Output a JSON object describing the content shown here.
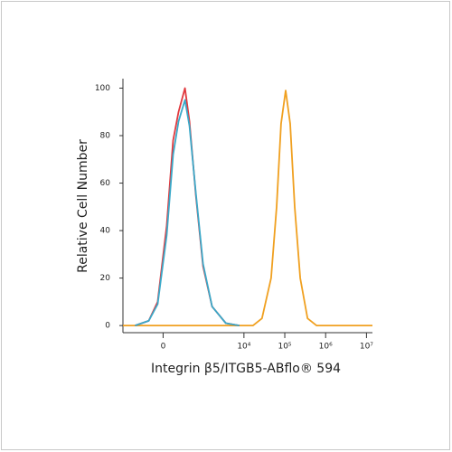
{
  "chart_data": {
    "type": "line",
    "x_label": "Integrin β5/ITGB5-ABflo® 594",
    "y_label": "Relative Cell Number",
    "xscale": "biexponential",
    "xlim": [
      -1000,
      14000000
    ],
    "xticks": [
      0,
      {
        "value": 10000,
        "label": "10⁴"
      },
      {
        "value": 100000,
        "label": "10⁵"
      },
      {
        "value": 1000000,
        "label": "10⁶"
      },
      {
        "value": 10000000,
        "label": "10⁷"
      }
    ],
    "ylim": [
      -3,
      104
    ],
    "yticks": [
      0,
      20,
      40,
      60,
      80,
      100
    ],
    "series": [
      {
        "color": "#f0a020",
        "x": [
          -1000,
          16650,
          27700,
          46200,
          63200,
          81100,
          105000,
          135700,
          175000,
          239000,
          360000,
          598000,
          14000000
        ],
        "values": [
          0,
          0,
          3,
          20,
          50,
          85,
          99,
          85,
          50,
          20,
          3,
          0,
          0
        ]
      },
      {
        "color": "#e0393e",
        "x": [
          -490,
          -190,
          -66,
          43,
          125,
          206,
          330,
          440,
          645,
          985,
          1650,
          3590,
          7720
        ],
        "values": [
          0,
          2,
          10,
          42,
          78,
          90,
          100,
          86,
          55,
          25,
          8,
          1,
          0
        ]
      },
      {
        "color": "#3aa9c9",
        "x": [
          -490,
          -190,
          -66,
          43,
          125,
          206,
          330,
          440,
          645,
          985,
          1650,
          3590,
          7720
        ],
        "values": [
          0,
          2,
          9,
          38,
          72,
          86,
          95,
          84,
          56,
          26,
          8,
          1,
          0
        ]
      }
    ]
  }
}
